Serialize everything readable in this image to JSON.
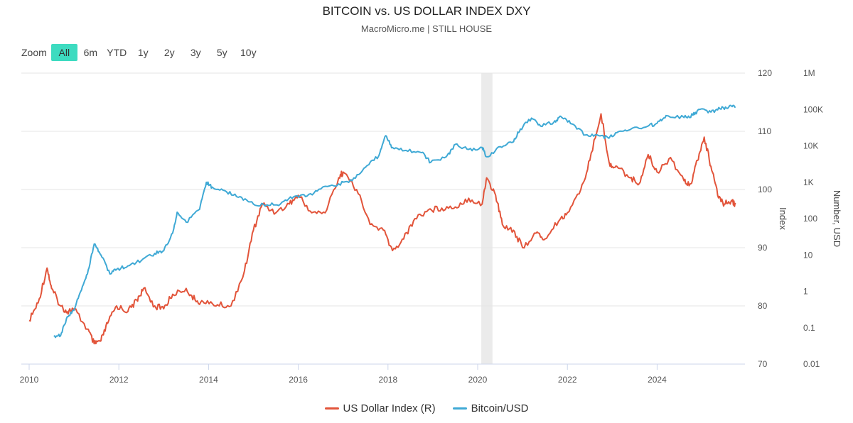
{
  "header": {
    "title": "BITCOIN vs. US DOLLAR INDEX DXY",
    "subtitle": "MacroMicro.me | STILL HOUSE"
  },
  "zoom": {
    "label": "Zoom",
    "buttons": [
      "All",
      "6m",
      "YTD",
      "1y",
      "2y",
      "3y",
      "5y",
      "10y"
    ],
    "active": "All"
  },
  "legend": {
    "items": [
      {
        "label": "US Dollar Index (R)",
        "color": "#e2543a"
      },
      {
        "label": "Bitcoin/USD",
        "color": "#3fa9d5"
      }
    ]
  },
  "chart_data": {
    "type": "line",
    "title": "BITCOIN vs. US DOLLAR INDEX DXY",
    "subtitle": "MacroMicro.me | STILL HOUSE",
    "x_range": [
      2010,
      2025.8
    ],
    "x_ticks": [
      "2010",
      "2012",
      "2014",
      "2016",
      "2018",
      "2020",
      "2022",
      "2024"
    ],
    "shaded_band": {
      "from": 2020.08,
      "to": 2020.33
    },
    "axes": {
      "index": {
        "label": "Index",
        "range": [
          70,
          120
        ],
        "ticks": [
          "70",
          "80",
          "90",
          "100",
          "110",
          "120"
        ]
      },
      "usd": {
        "label": "Number, USD",
        "scale": "log",
        "range": [
          0.01,
          1000000
        ],
        "ticks": [
          "0.01",
          "0.1",
          "1",
          "10",
          "100",
          "1K",
          "10K",
          "100K",
          "1M"
        ]
      }
    },
    "series": [
      {
        "name": "US Dollar Index (R)",
        "axis": "index",
        "color": "#e2543a",
        "points": [
          [
            2010,
            77.5
          ],
          [
            2010.2,
            80.5
          ],
          [
            2010.4,
            86.5
          ],
          [
            2010.5,
            83
          ],
          [
            2010.7,
            80
          ],
          [
            2010.85,
            79
          ],
          [
            2011,
            79.5
          ],
          [
            2011.3,
            76
          ],
          [
            2011.45,
            73.5
          ],
          [
            2011.6,
            74
          ],
          [
            2011.75,
            77
          ],
          [
            2011.95,
            80
          ],
          [
            2012.2,
            79
          ],
          [
            2012.4,
            81
          ],
          [
            2012.55,
            83
          ],
          [
            2012.8,
            80
          ],
          [
            2013,
            79.5
          ],
          [
            2013.2,
            82
          ],
          [
            2013.5,
            83
          ],
          [
            2013.7,
            81
          ],
          [
            2013.9,
            80.5
          ],
          [
            2014.2,
            80.2
          ],
          [
            2014.5,
            80
          ],
          [
            2014.8,
            86
          ],
          [
            2015,
            93
          ],
          [
            2015.2,
            97.5
          ],
          [
            2015.5,
            96
          ],
          [
            2015.8,
            97.5
          ],
          [
            2016,
            99
          ],
          [
            2016.3,
            96
          ],
          [
            2016.6,
            96
          ],
          [
            2016.9,
            102
          ],
          [
            2017,
            103
          ],
          [
            2017.3,
            100
          ],
          [
            2017.6,
            94
          ],
          [
            2017.9,
            93
          ],
          [
            2018.1,
            89.5
          ],
          [
            2018.35,
            91.5
          ],
          [
            2018.6,
            95
          ],
          [
            2018.9,
            96.5
          ],
          [
            2019.2,
            96.8
          ],
          [
            2019.5,
            97
          ],
          [
            2019.8,
            98.5
          ],
          [
            2020.1,
            97.5
          ],
          [
            2020.2,
            102
          ],
          [
            2020.4,
            99
          ],
          [
            2020.55,
            94
          ],
          [
            2020.8,
            93
          ],
          [
            2021,
            90
          ],
          [
            2021.3,
            92.5
          ],
          [
            2021.5,
            91.5
          ],
          [
            2021.8,
            94.5
          ],
          [
            2022,
            96
          ],
          [
            2022.3,
            100
          ],
          [
            2022.5,
            105
          ],
          [
            2022.75,
            113
          ],
          [
            2022.95,
            104
          ],
          [
            2023.1,
            104
          ],
          [
            2023.4,
            102
          ],
          [
            2023.6,
            101
          ],
          [
            2023.8,
            106
          ],
          [
            2024,
            103
          ],
          [
            2024.3,
            105.5
          ],
          [
            2024.6,
            101.5
          ],
          [
            2024.75,
            101
          ],
          [
            2024.9,
            105
          ],
          [
            2025.05,
            109
          ],
          [
            2025.2,
            104
          ],
          [
            2025.35,
            99
          ],
          [
            2025.5,
            97.5
          ],
          [
            2025.65,
            98
          ],
          [
            2025.75,
            97.5
          ]
        ]
      },
      {
        "name": "Bitcoin/USD",
        "axis": "usd",
        "color": "#3fa9d5",
        "points": [
          [
            2010.55,
            0.06
          ],
          [
            2010.7,
            0.06
          ],
          [
            2010.85,
            0.2
          ],
          [
            2011,
            0.3
          ],
          [
            2011.15,
            1
          ],
          [
            2011.3,
            3
          ],
          [
            2011.45,
            20
          ],
          [
            2011.6,
            10
          ],
          [
            2011.8,
            3
          ],
          [
            2011.95,
            4
          ],
          [
            2012.2,
            5
          ],
          [
            2012.5,
            7
          ],
          [
            2012.8,
            11
          ],
          [
            2013,
            13
          ],
          [
            2013.2,
            40
          ],
          [
            2013.3,
            150
          ],
          [
            2013.5,
            80
          ],
          [
            2013.8,
            180
          ],
          [
            2013.95,
            1000
          ],
          [
            2014.1,
            700
          ],
          [
            2014.4,
            550
          ],
          [
            2014.7,
            400
          ],
          [
            2015,
            250
          ],
          [
            2015.3,
            240
          ],
          [
            2015.6,
            250
          ],
          [
            2015.9,
            400
          ],
          [
            2016.2,
            420
          ],
          [
            2016.5,
            650
          ],
          [
            2016.9,
            900
          ],
          [
            2017.2,
            1100
          ],
          [
            2017.5,
            2600
          ],
          [
            2017.8,
            5500
          ],
          [
            2017.95,
            19000
          ],
          [
            2018.1,
            9000
          ],
          [
            2018.4,
            7500
          ],
          [
            2018.75,
            6500
          ],
          [
            2018.95,
            3500
          ],
          [
            2019.3,
            5000
          ],
          [
            2019.5,
            11000
          ],
          [
            2019.8,
            8000
          ],
          [
            2020.1,
            9000
          ],
          [
            2020.2,
            5000
          ],
          [
            2020.5,
            9500
          ],
          [
            2020.8,
            13000
          ],
          [
            2020.95,
            29000
          ],
          [
            2021.2,
            58000
          ],
          [
            2021.4,
            35000
          ],
          [
            2021.7,
            45000
          ],
          [
            2021.85,
            65000
          ],
          [
            2022.1,
            40000
          ],
          [
            2022.4,
            20000
          ],
          [
            2022.7,
            19000
          ],
          [
            2022.9,
            17000
          ],
          [
            2023.1,
            23000
          ],
          [
            2023.4,
            28000
          ],
          [
            2023.8,
            35000
          ],
          [
            2024,
            42000
          ],
          [
            2024.2,
            68000
          ],
          [
            2024.6,
            60000
          ],
          [
            2024.8,
            70000
          ],
          [
            2024.95,
            100000
          ],
          [
            2025.2,
            85000
          ],
          [
            2025.4,
            105000
          ],
          [
            2025.6,
            118000
          ],
          [
            2025.75,
            115000
          ]
        ]
      }
    ]
  }
}
